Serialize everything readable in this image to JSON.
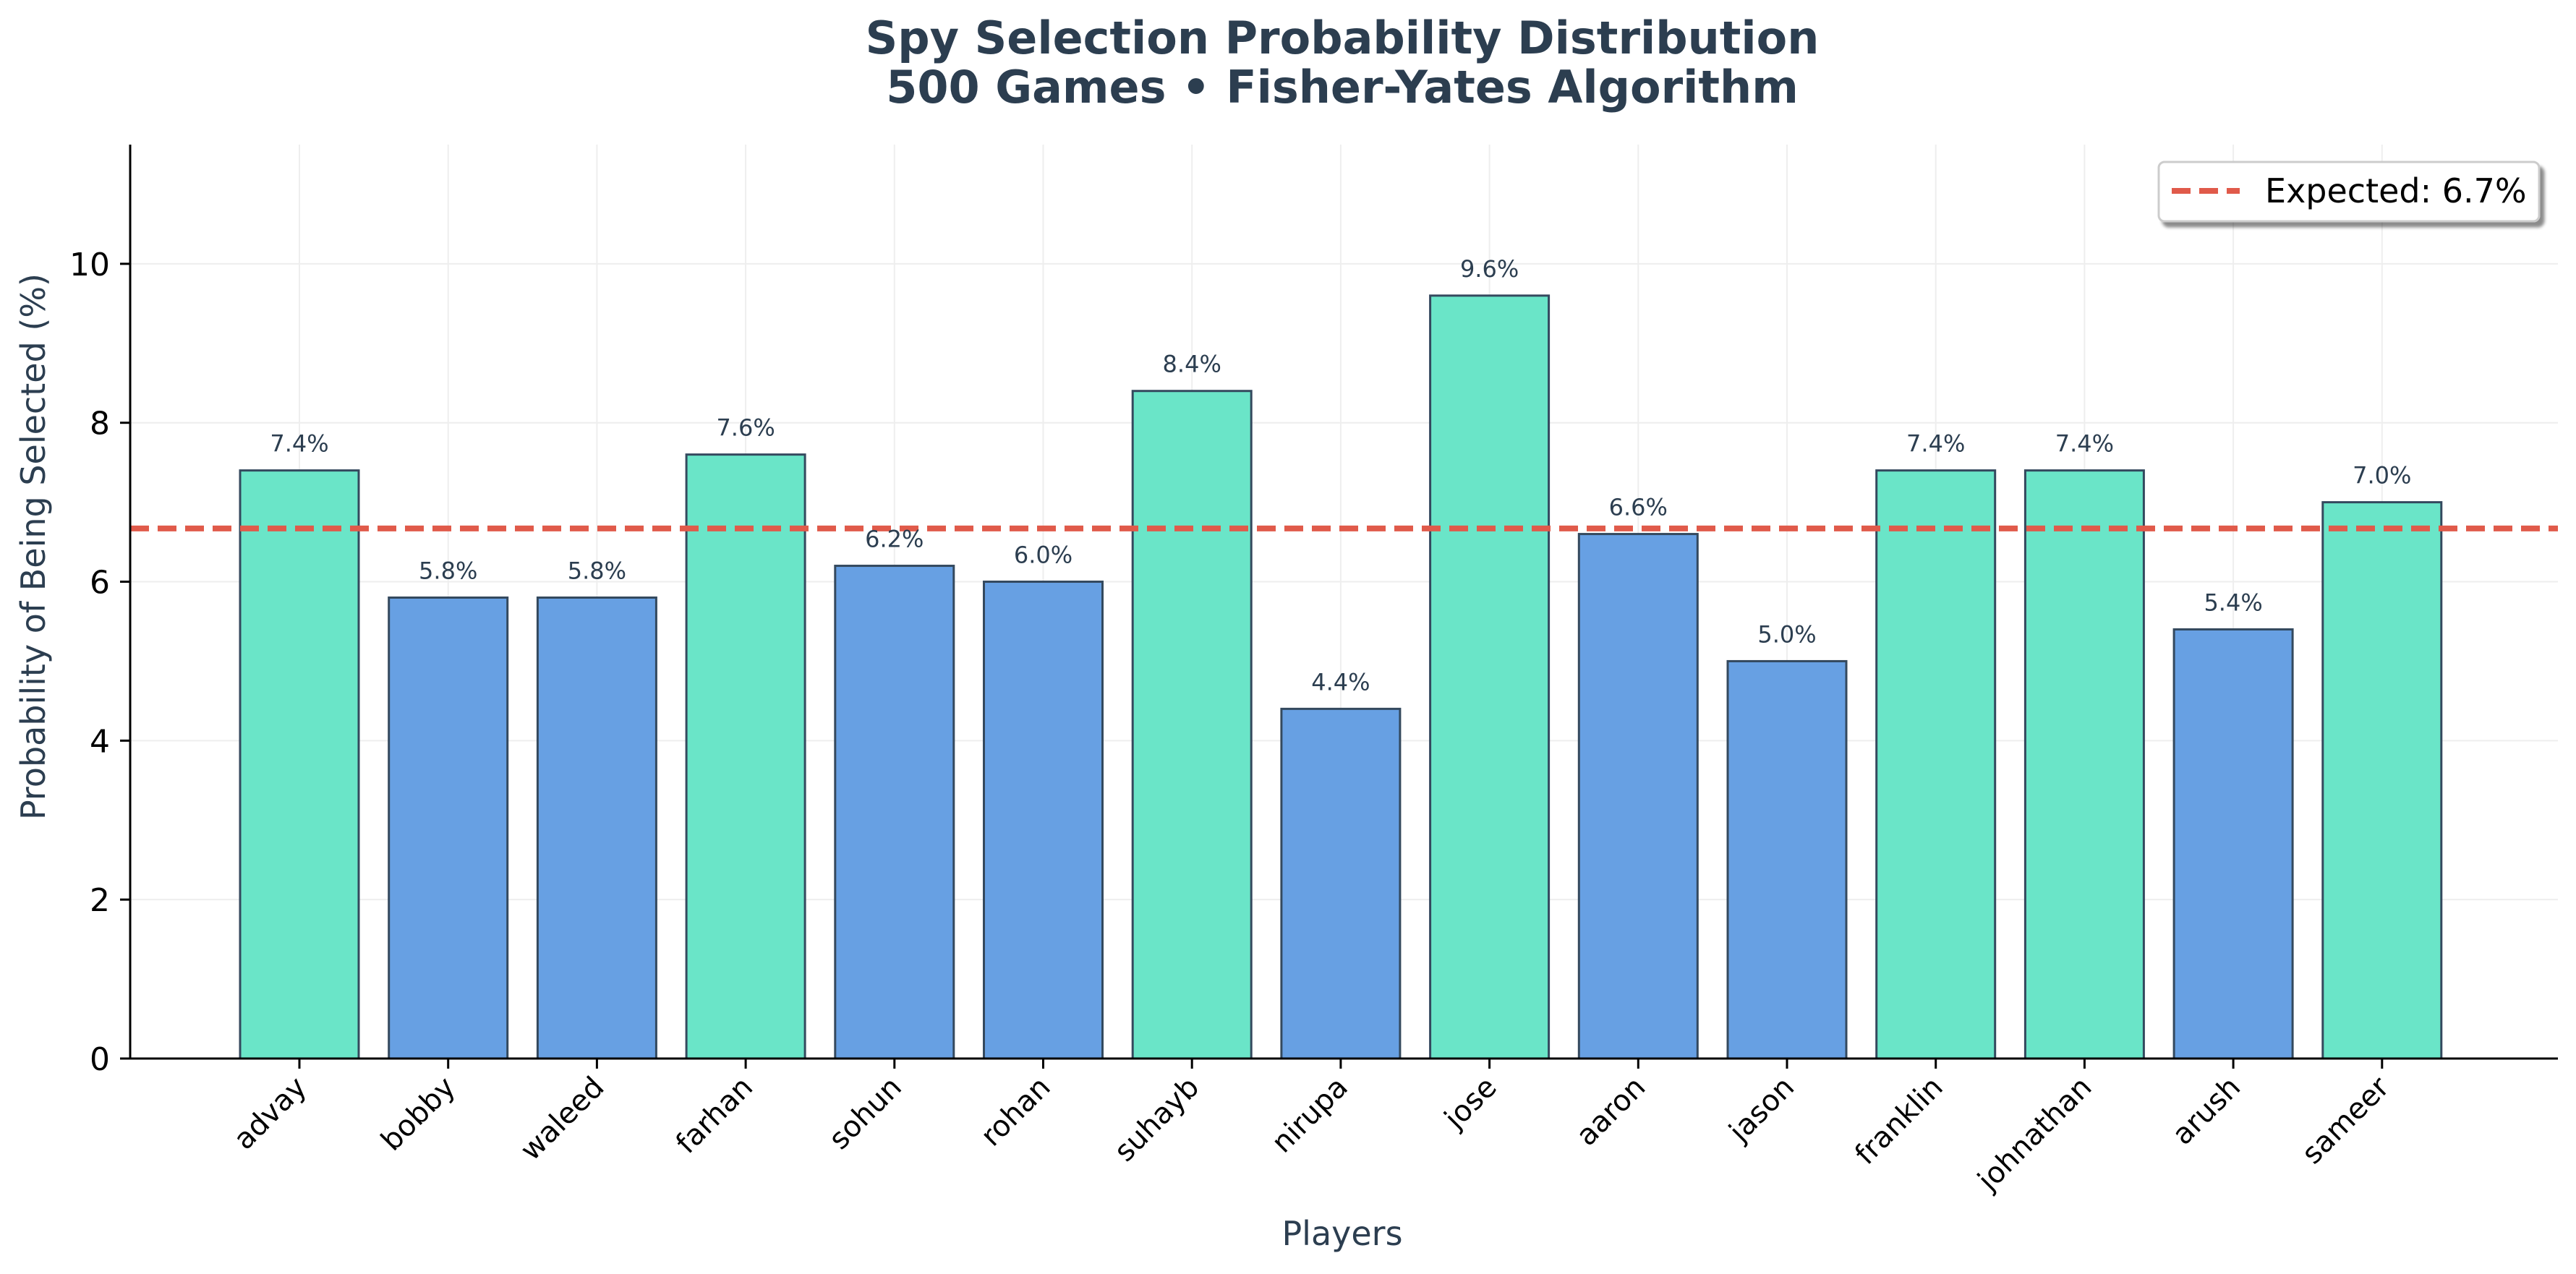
{
  "chart_data": {
    "type": "bar",
    "title": "Spy Selection Probability Distribution",
    "subtitle": "500 Games • Fisher-Yates Algorithm",
    "xlabel": "Players",
    "ylabel": "Probability of Being Selected (%)",
    "categories": [
      "advay",
      "bobby",
      "waleed",
      "farhan",
      "sohun",
      "rohan",
      "suhayb",
      "nirupa",
      "jose",
      "aaron",
      "jason",
      "franklin",
      "johnathan",
      "arush",
      "sameer"
    ],
    "values": [
      7.4,
      5.8,
      5.8,
      7.6,
      6.2,
      6.0,
      8.4,
      4.4,
      9.6,
      6.6,
      5.0,
      7.4,
      7.4,
      5.4,
      7.0
    ],
    "value_labels": [
      "7.4%",
      "5.8%",
      "5.8%",
      "7.6%",
      "6.2%",
      "6.0%",
      "8.4%",
      "4.4%",
      "9.6%",
      "6.6%",
      "5.0%",
      "7.4%",
      "7.4%",
      "5.4%",
      "7.0%"
    ],
    "ylim": [
      0,
      11.5
    ],
    "yticks": [
      0,
      2,
      4,
      6,
      8,
      10
    ],
    "ytick_labels": [
      "0",
      "2",
      "4",
      "6",
      "8",
      "10"
    ],
    "expected_line": {
      "value": 6.67,
      "label": "Expected: 6.7%"
    },
    "grid": true,
    "legend_position": "top-right",
    "colors": {
      "above_expected": "#6ae5c8",
      "below_expected": "#67a0e3",
      "bar_edge": "#34495e",
      "expected_line": "#e05a4a",
      "title": "#2c3e50",
      "grid": "#eeeeee"
    }
  }
}
